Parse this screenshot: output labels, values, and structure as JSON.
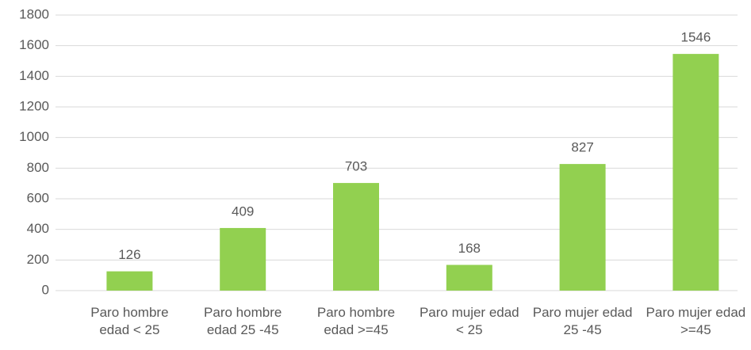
{
  "chart_data": {
    "type": "bar",
    "categories": [
      "Paro hombre edad < 25",
      "Paro hombre edad 25 -45",
      "Paro hombre edad >=45",
      "Paro mujer edad < 25",
      "Paro mujer edad 25 -45",
      "Paro mujer edad >=45"
    ],
    "values": [
      126,
      409,
      703,
      168,
      827,
      1546
    ],
    "color": "#92d050",
    "ylim": [
      0,
      1800
    ],
    "yticks": [
      0,
      200,
      400,
      600,
      800,
      1000,
      1200,
      1400,
      1600,
      1800
    ],
    "grid": true
  }
}
